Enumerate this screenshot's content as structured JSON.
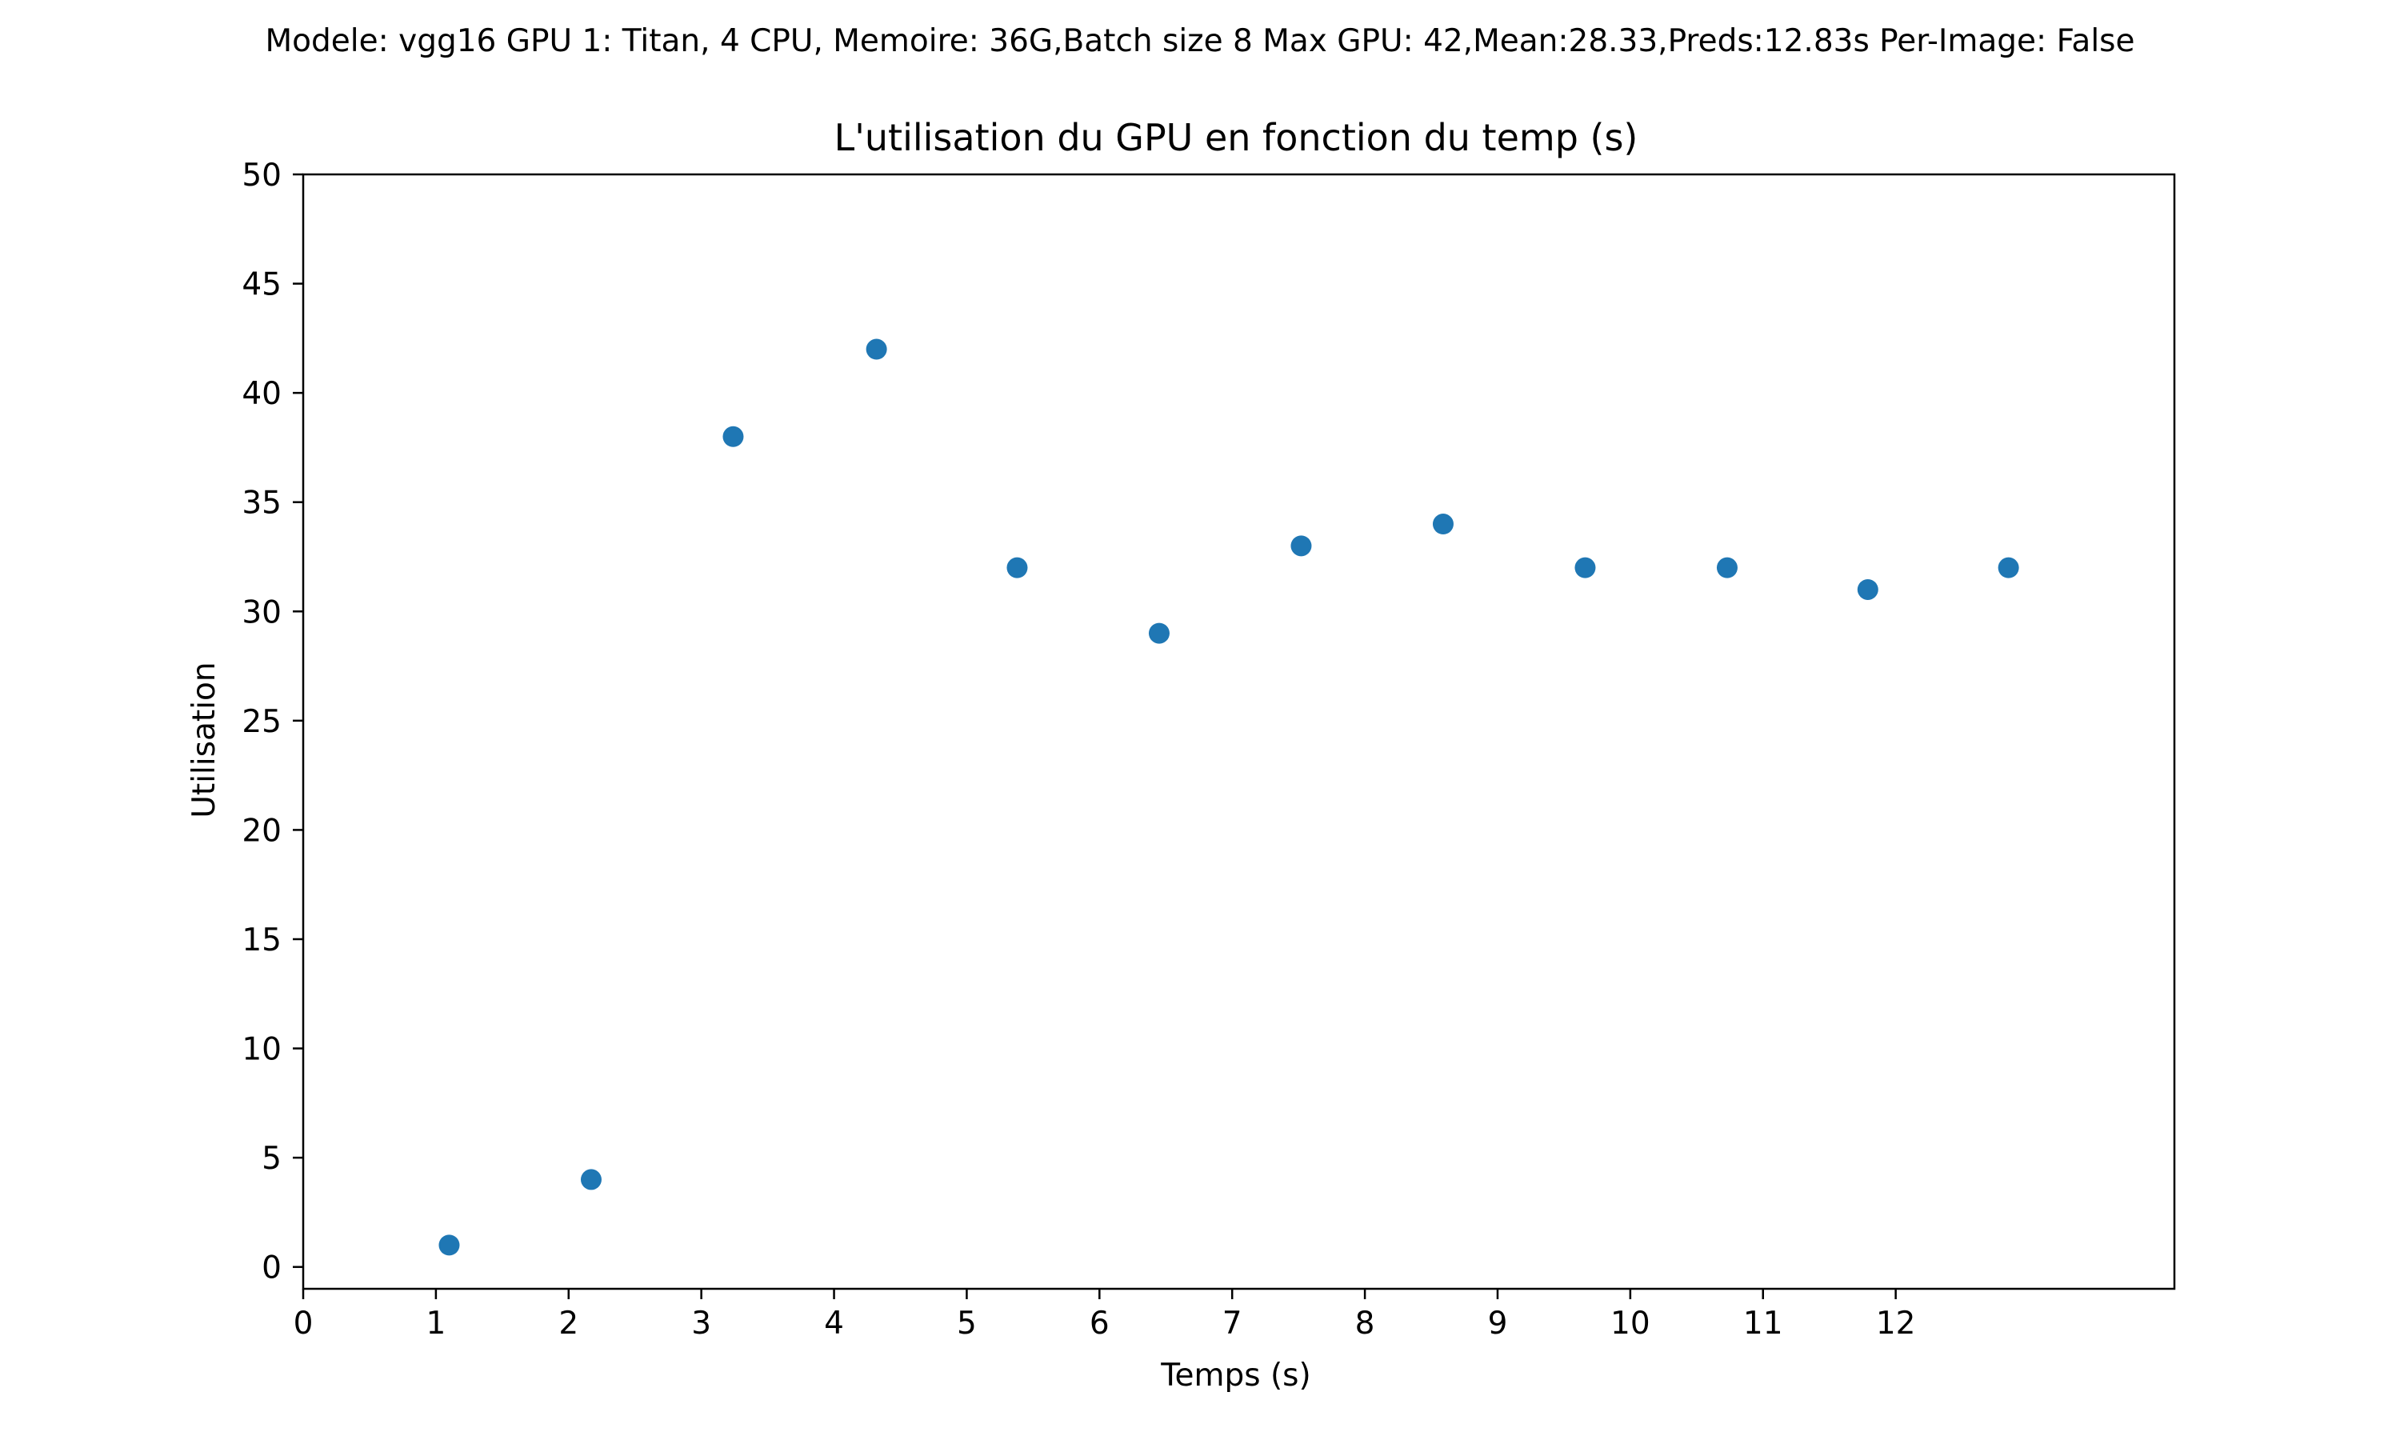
{
  "chart_data": {
    "type": "scatter",
    "suptitle": "Modele: vgg16 GPU 1: Titan, 4 CPU, Memoire: 36G,Batch size 8 Max GPU: 42,Mean:28.33,Preds:12.83s Per-Image: False",
    "title": "L'utilisation du GPU  en fonction du temp (s)",
    "xlabel": "Temps (s)",
    "ylabel": "Utilisation",
    "xlim": [
      0,
      14.1
    ],
    "ylim": [
      -1,
      50
    ],
    "xticks": [
      0,
      1,
      2,
      3,
      4,
      5,
      6,
      7,
      8,
      9,
      10,
      11,
      12
    ],
    "yticks": [
      0,
      5,
      10,
      15,
      20,
      25,
      30,
      35,
      40,
      45,
      50
    ],
    "grid": false,
    "marker_color": "#1f77b4",
    "series": [
      {
        "x": [
          1.1,
          2.17,
          3.24,
          4.32,
          5.38,
          6.45,
          7.52,
          8.59,
          9.66,
          10.73,
          11.79,
          12.85
        ],
        "y": [
          1,
          4,
          38,
          42,
          32,
          29,
          33,
          34,
          32,
          32,
          31,
          32
        ]
      }
    ]
  }
}
